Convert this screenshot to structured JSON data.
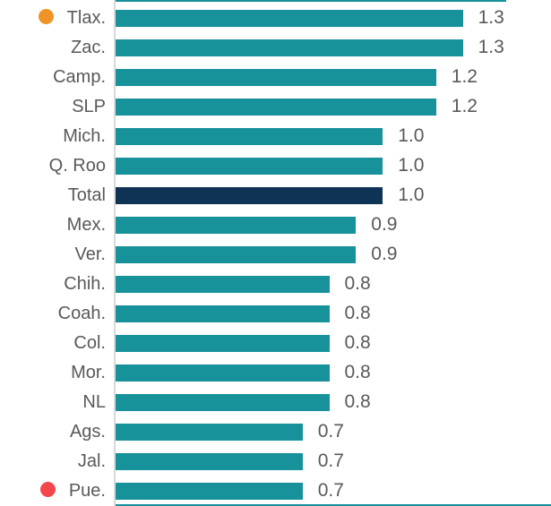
{
  "chart_data": {
    "type": "bar",
    "orientation": "horizontal",
    "title": "",
    "xlabel": "",
    "ylabel": "",
    "categories": [
      "Tlax.",
      "Zac.",
      "Camp.",
      "SLP",
      "Mich.",
      "Q. Roo",
      "Total",
      "Mex.",
      "Ver.",
      "Chih.",
      "Coah.",
      "Col.",
      "Mor.",
      "NL",
      "Ags.",
      "Jal.",
      "Pue."
    ],
    "values": [
      1.3,
      1.3,
      1.2,
      1.2,
      1.0,
      1.0,
      1.0,
      0.9,
      0.9,
      0.8,
      0.8,
      0.8,
      0.8,
      0.8,
      0.7,
      0.7,
      0.7
    ],
    "value_labels": [
      "1.3",
      "1.3",
      "1.2",
      "1.2",
      "1.0",
      "1.0",
      "1.0",
      "0.9",
      "0.9",
      "0.8",
      "0.8",
      "0.8",
      "0.8",
      "0.8",
      "0.7",
      "0.7",
      "0.7"
    ],
    "highlighted_category": "Total",
    "markers": [
      {
        "category": "Tlax.",
        "icon": "orange-dot-icon",
        "color": "#EF9327"
      },
      {
        "category": "Pue.",
        "icon": "red-dot-icon",
        "color": "#F4474C"
      }
    ],
    "xlim": [
      0,
      1.63
    ],
    "grid": false,
    "legend": false,
    "cropped_neighbor_bars": {
      "top_visible": true,
      "bottom_visible": true
    }
  },
  "colors": {
    "bar": "#17919A",
    "highlight_bar": "#0F3354",
    "label_text": "#595959",
    "value_text": "#595959",
    "axis_line": "#D9D9D9"
  }
}
